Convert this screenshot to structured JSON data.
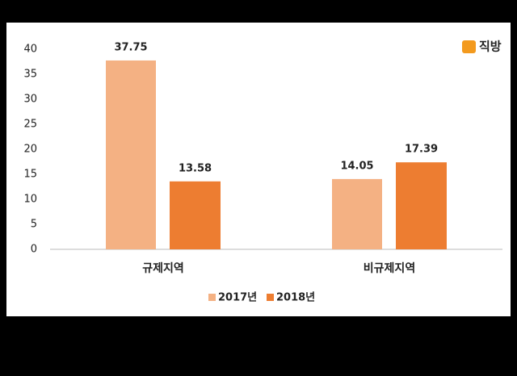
{
  "logo": "직방",
  "chart_data": {
    "type": "bar",
    "categories": [
      "규제지역",
      "비규제지역"
    ],
    "series": [
      {
        "name": "2017년",
        "color": "#f4b183",
        "values": [
          37.75,
          14.05
        ]
      },
      {
        "name": "2018년",
        "color": "#ed7d31",
        "values": [
          13.58,
          17.39
        ]
      }
    ],
    "ylim": [
      0,
      40
    ],
    "yticks": [
      0,
      5,
      10,
      15,
      20,
      25,
      30,
      35,
      40
    ],
    "grid": false
  }
}
